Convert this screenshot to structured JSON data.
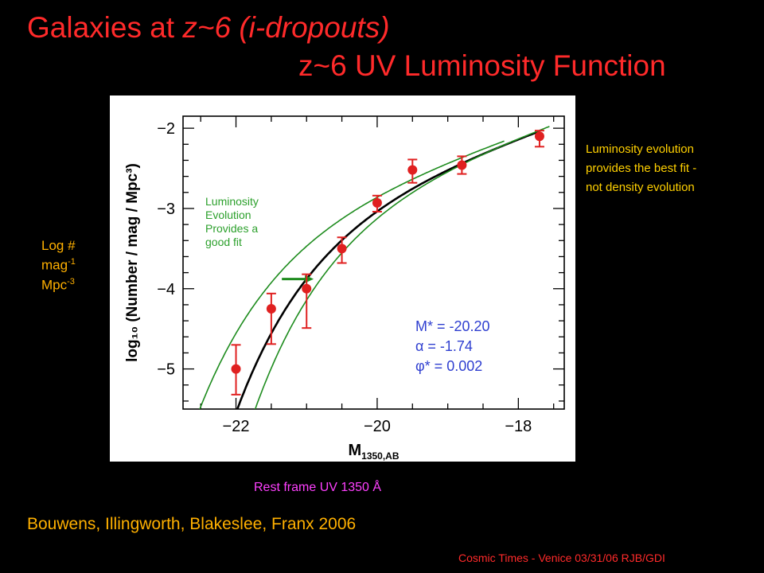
{
  "title": {
    "line1_a": "Galaxies at ",
    "line1_b": "z~6 ",
    "line1_c": "(i-dropouts)",
    "line2": "z~6 UV Luminosity Function"
  },
  "side_ylabel": {
    "line1": "Log #",
    "line2_base": "mag",
    "line2_sup": "-1",
    "line3_base": "Mpc",
    "line3_sup": "-3"
  },
  "luminosity_note": [
    "Luminosity evolution",
    "provides the best fit -",
    "not density evolution"
  ],
  "lum_evo_label": [
    "Luminosity",
    "Evolution",
    "Provides a",
    "good fit"
  ],
  "params": {
    "mstar": "M* = -20.20",
    "alpha": "α   = -1.74",
    "phistar": "φ*  = 0.002"
  },
  "rest_frame": "Rest frame UV 1350 Å",
  "authors": "Bouwens, Illingworth, Blakeslee, Franx 2006",
  "footer": "Cosmic Times - Venice 03/31/06  RJB/GDI",
  "colors": {
    "title": "#ff2a2a",
    "points": "#e02020",
    "fit": "#000000",
    "alt_fits": "#1e8c1e",
    "arrow": "#1e8c1e"
  },
  "chart_data": {
    "type": "scatter",
    "xlabel": "M",
    "xlabel_sub": "1350,AB",
    "ylabel": "log₁₀ (Number / mag / Mpc³)",
    "xlim": [
      -22.75,
      -17.35
    ],
    "ylim": [
      -5.5,
      -1.85
    ],
    "xticks": [
      -22,
      -20,
      -18
    ],
    "xtick_labels": [
      "−22",
      "−20",
      "−18"
    ],
    "yticks": [
      -2,
      -3,
      -4,
      -5
    ],
    "ytick_labels": [
      "−2",
      "−3",
      "−4",
      "−5"
    ],
    "series": [
      {
        "kind": "points",
        "x": [
          -22.0,
          -21.5,
          -21.0,
          -20.5,
          -20.0,
          -19.5,
          -18.8,
          -17.7
        ],
        "y": [
          -5.0,
          -4.25,
          -4.0,
          -3.5,
          -2.93,
          -2.52,
          -2.46,
          -2.1
        ],
        "yerr_low": [
          0.32,
          0.44,
          0.49,
          0.18,
          0.11,
          0.16,
          0.11,
          0.13
        ],
        "yerr_high": [
          0.3,
          0.19,
          0.18,
          0.14,
          0.09,
          0.13,
          0.11,
          0.07
        ]
      },
      {
        "kind": "schechter",
        "mstar": -20.2,
        "alpha": -1.74,
        "phistar": 0.002,
        "xrange": [
          -22.0,
          -17.7
        ]
      },
      {
        "kind": "schechter",
        "mstar": -20.8,
        "alpha": -1.74,
        "phistar": 0.0014,
        "xrange": [
          -22.7,
          -18.2
        ]
      },
      {
        "kind": "schechter",
        "mstar": -19.9,
        "alpha": -1.74,
        "phistar": 0.0026,
        "xrange": [
          -21.9,
          -17.55
        ]
      }
    ],
    "arrow": {
      "x_from": -21.35,
      "x_to": -20.9,
      "y": -3.88
    },
    "grid": false
  }
}
